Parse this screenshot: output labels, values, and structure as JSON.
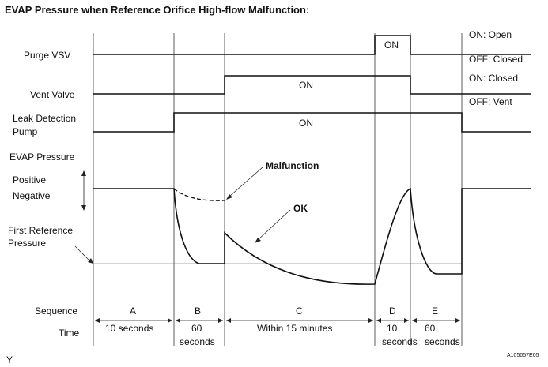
{
  "title": "EVAP Pressure when Reference Orifice High-flow Malfunction:",
  "signals": {
    "purge_vsv": "Purge VSV",
    "vent_valve": "Vent Valve",
    "leak_pump_line1": "Leak Detection",
    "leak_pump_line2": "Pump",
    "evap_pressure": "EVAP Pressure",
    "positive": "Positive",
    "negative": "Negative",
    "first_ref_line1": "First Reference",
    "first_ref_line2": "Pressure"
  },
  "states": {
    "purge_on": "ON: Open",
    "purge_off": "OFF: Closed",
    "vent_on": "ON: Closed",
    "vent_off": "OFF: Vent"
  },
  "on_label": "ON",
  "annotations": {
    "malfunction": "Malfunction",
    "ok": "OK"
  },
  "rows": {
    "sequence": "Sequence",
    "time": "Time"
  },
  "sequence": [
    "A",
    "B",
    "C",
    "D",
    "E"
  ],
  "time": {
    "a": "10 seconds",
    "b_line1": "60",
    "b_line2": "seconds",
    "c": "Within 15 minutes",
    "d_line1": "10",
    "d_line2": "seconds",
    "e_line1": "60",
    "e_line2": "seconds"
  },
  "figure_code": "A105057E05",
  "corner_mark": "Y"
}
